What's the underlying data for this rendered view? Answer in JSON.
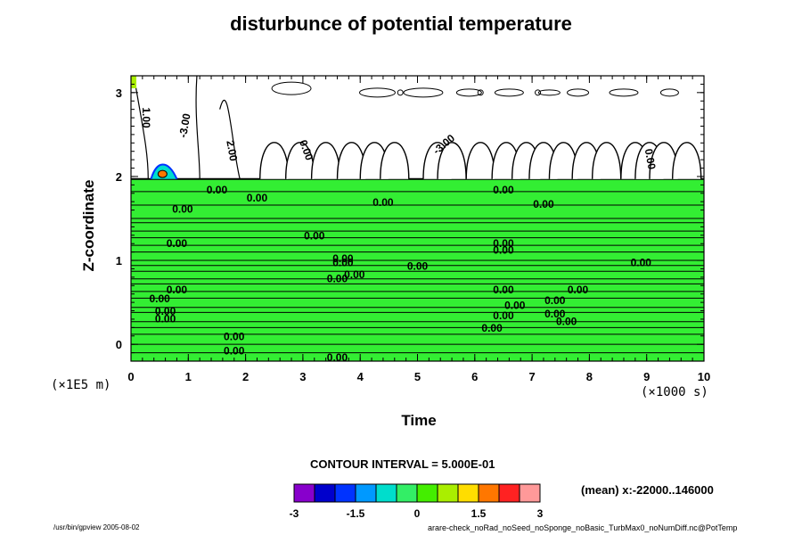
{
  "chart_data": {
    "type": "contour",
    "title": "disturbunce of potential temperature",
    "xlabel": "Time",
    "ylabel": "Z-coordinate",
    "x_unit_label": "(×1000 s)",
    "y_unit_label": "(×1E5 m)",
    "xlim": [
      0,
      10
    ],
    "ylim": [
      -0.2,
      3.2
    ],
    "x_ticks": [
      0,
      1,
      2,
      3,
      4,
      5,
      6,
      7,
      8,
      9,
      10
    ],
    "y_ticks": [
      0,
      1,
      2,
      3
    ],
    "background_value_color": "#33ee33",
    "layer_top": 1.97,
    "horizontal_contour_levels": [
      1.82,
      1.66,
      1.5,
      1.45,
      1.35,
      1.27,
      1.18,
      1.1,
      1.0,
      0.94,
      0.87,
      0.78,
      0.72,
      0.63,
      0.55,
      0.44,
      0.38,
      0.27,
      0.2,
      0.12,
      0.0,
      -0.1
    ],
    "contour_labels": [
      {
        "x": 1.5,
        "y": 1.8,
        "text": "0.00"
      },
      {
        "x": 2.2,
        "y": 1.7,
        "text": "0.00"
      },
      {
        "x": 0.9,
        "y": 1.57,
        "text": "0.00"
      },
      {
        "x": 4.4,
        "y": 1.65,
        "text": "0.00"
      },
      {
        "x": 6.5,
        "y": 1.8,
        "text": "0.00"
      },
      {
        "x": 7.2,
        "y": 1.63,
        "text": "0.00"
      },
      {
        "x": 3.2,
        "y": 1.25,
        "text": "0.00"
      },
      {
        "x": 0.8,
        "y": 1.16,
        "text": "0.00"
      },
      {
        "x": 6.5,
        "y": 1.16,
        "text": "0.00"
      },
      {
        "x": 6.5,
        "y": 1.08,
        "text": "0.00"
      },
      {
        "x": 3.7,
        "y": 0.98,
        "text": "0.00"
      },
      {
        "x": 3.7,
        "y": 0.93,
        "text": "0.00"
      },
      {
        "x": 5.0,
        "y": 0.89,
        "text": "0.00"
      },
      {
        "x": 3.9,
        "y": 0.79,
        "text": "0.00"
      },
      {
        "x": 3.6,
        "y": 0.74,
        "text": "0.00"
      },
      {
        "x": 8.9,
        "y": 0.93,
        "text": "0.00"
      },
      {
        "x": 0.8,
        "y": 0.61,
        "text": "0.00"
      },
      {
        "x": 0.5,
        "y": 0.5,
        "text": "0.00"
      },
      {
        "x": 0.6,
        "y": 0.35,
        "text": "0.00"
      },
      {
        "x": 0.6,
        "y": 0.26,
        "text": "0.00"
      },
      {
        "x": 6.5,
        "y": 0.61,
        "text": "0.00"
      },
      {
        "x": 7.8,
        "y": 0.61,
        "text": "0.00"
      },
      {
        "x": 6.7,
        "y": 0.42,
        "text": "0.00"
      },
      {
        "x": 7.4,
        "y": 0.48,
        "text": "0.00"
      },
      {
        "x": 6.5,
        "y": 0.3,
        "text": "0.00"
      },
      {
        "x": 7.4,
        "y": 0.32,
        "text": "0.00"
      },
      {
        "x": 7.6,
        "y": 0.23,
        "text": "0.00"
      },
      {
        "x": 6.3,
        "y": 0.15,
        "text": "0.00"
      },
      {
        "x": 1.8,
        "y": 0.05,
        "text": "0.00"
      },
      {
        "x": 1.8,
        "y": -0.12,
        "text": "0.00"
      },
      {
        "x": 3.6,
        "y": -0.2,
        "text": "0.00"
      },
      {
        "x": 0.2,
        "y": 2.7,
        "text": "1.00",
        "rotate": 90
      },
      {
        "x": 1.0,
        "y": 2.6,
        "text": "-3.00",
        "rotate": -80
      },
      {
        "x": 1.7,
        "y": 2.3,
        "text": "2.00",
        "rotate": 80
      },
      {
        "x": 3.0,
        "y": 2.3,
        "text": "0.00",
        "rotate": 70
      },
      {
        "x": 5.5,
        "y": 2.35,
        "text": "-3.00",
        "rotate": -40
      },
      {
        "x": 9.0,
        "y": 2.2,
        "text": "0.00",
        "rotate": 80
      }
    ],
    "colorbar": {
      "colors": [
        "#8800cc",
        "#0000cc",
        "#0033ff",
        "#0099ff",
        "#00ddcc",
        "#33ee66",
        "#44ee00",
        "#aaee00",
        "#ffdd00",
        "#ff7700",
        "#ff2222",
        "#ff9999"
      ],
      "tick_labels": [
        "-3",
        "-1.5",
        "0",
        "1.5",
        "3"
      ]
    }
  },
  "contour_interval_text": "CONTOUR INTERVAL = 5.000E-01",
  "mean_text": "(mean) x:-22000..146000",
  "footer_left": "/usr/bin/gpview 2005-08-02",
  "footer_right": "arare-check_noRad_noSeed_noSponge_noBasic_TurbMax0_noNumDiff.nc@PotTemp"
}
